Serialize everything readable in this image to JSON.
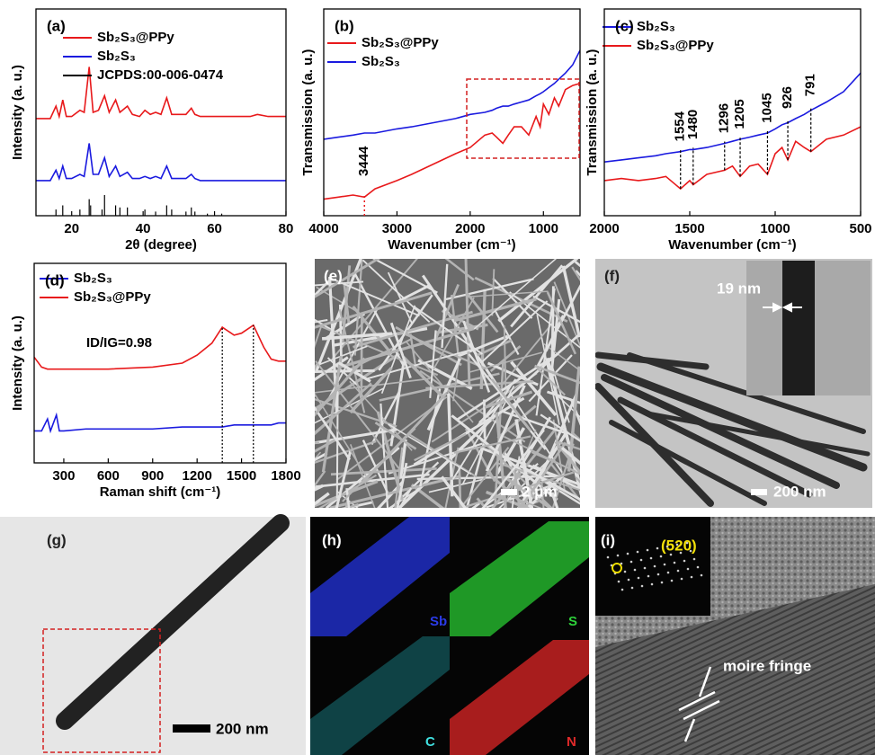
{
  "chart_data": [
    {
      "type": "line",
      "panel": "(a)",
      "x_label": "2θ (degree)",
      "y_label": "Intensity (a. u.)",
      "x": [
        10,
        12,
        14,
        15.6,
        16.5,
        17.5,
        18.5,
        20,
        22.3,
        23.5,
        24.9,
        26,
        27.5,
        29.2,
        30.5,
        32.3,
        33.5,
        35.6,
        37,
        39,
        40.5,
        42,
        43.5,
        45,
        46.6,
        48,
        50,
        52,
        53.5,
        54.5,
        56,
        60,
        65,
        70,
        72,
        75,
        80
      ],
      "xlim": [
        10,
        80
      ],
      "xticks": [
        20,
        40,
        60,
        80
      ],
      "ylim": [
        0,
        100
      ],
      "series": [
        {
          "name": "Sb₂S₃@PPy",
          "color": "#e8191b",
          "values": [
            47,
            47,
            47,
            53,
            48,
            56,
            48,
            48,
            51,
            50,
            72,
            50,
            51,
            58,
            50,
            56,
            50,
            53,
            49,
            48,
            51,
            49,
            50,
            49,
            57,
            49,
            49,
            49,
            52,
            49,
            48,
            48,
            48,
            48,
            49,
            48,
            48
          ]
        },
        {
          "name": "Sb₂S₃",
          "color": "#1a1adf",
          "values": [
            17,
            17,
            17,
            22,
            18,
            24,
            18,
            18,
            20,
            19,
            35,
            20,
            20,
            28,
            19,
            24,
            19,
            21,
            18,
            18,
            19,
            18,
            19,
            18,
            24,
            18,
            18,
            18,
            20,
            18,
            17,
            17,
            17,
            17,
            17,
            17,
            17
          ]
        },
        {
          "name": "JCPDS:00-006-0474",
          "color": "#000000",
          "style": "stick",
          "x": [
            15.6,
            17.5,
            22.3,
            24.9,
            25.3,
            28.5,
            29.2,
            32.3,
            33.5,
            35.6,
            40.5,
            43.5,
            46.6,
            48,
            52,
            53.5,
            54.5,
            58,
            62
          ],
          "values": [
            3,
            5,
            3,
            8,
            5,
            3,
            10,
            5,
            4,
            4,
            3,
            2,
            5,
            3,
            2,
            4,
            2,
            1,
            1
          ]
        }
      ]
    },
    {
      "type": "line",
      "panel": "(b)",
      "x_label": "Wavenumber (cm⁻¹)",
      "y_label": "Transmission (a. u.)",
      "x": [
        4000,
        3800,
        3600,
        3444,
        3300,
        3000,
        2800,
        2500,
        2200,
        2000,
        1800,
        1700,
        1640,
        1554,
        1480,
        1400,
        1300,
        1200,
        1100,
        1045,
        1000,
        926,
        850,
        791,
        700,
        600,
        500
      ],
      "xlim": [
        4000,
        500
      ],
      "xticks": [
        4000,
        3000,
        2000,
        1000
      ],
      "ylim": [
        0,
        100
      ],
      "series": [
        {
          "name": "Sb₂S₃@PPy",
          "color": "#e8191b",
          "values": [
            8,
            9,
            10,
            9,
            13,
            17,
            20,
            25,
            30,
            33,
            39,
            40,
            38,
            35,
            39,
            43,
            43,
            39,
            48,
            43,
            54,
            49,
            57,
            53,
            61,
            63,
            64
          ]
        },
        {
          "name": "Sb₂S₃",
          "color": "#1a1adf",
          "values": [
            37,
            38,
            39,
            40,
            40,
            42,
            43,
            45,
            47,
            49,
            50,
            51,
            52,
            53,
            53,
            54,
            55,
            56,
            58,
            59,
            60,
            62,
            64,
            66,
            69,
            73,
            80
          ]
        }
      ],
      "annotations": [
        3444
      ]
    },
    {
      "type": "line",
      "panel": "(c)",
      "x_label": "Wavenumber (cm⁻¹)",
      "y_label": "Transmission (a. u.)",
      "x": [
        2000,
        1900,
        1800,
        1700,
        1640,
        1554,
        1500,
        1480,
        1400,
        1296,
        1250,
        1205,
        1150,
        1100,
        1045,
        1000,
        960,
        926,
        880,
        830,
        791,
        700,
        600,
        500
      ],
      "xlim": [
        2000,
        500
      ],
      "xticks": [
        2000,
        1500,
        1000,
        500
      ],
      "ylim": [
        0,
        100
      ],
      "series": [
        {
          "name": "Sb₂S₃",
          "color": "#1a1adf",
          "values": [
            26,
            27,
            28,
            29,
            30,
            31,
            32,
            32,
            33,
            35,
            36,
            37,
            38,
            39,
            40,
            42,
            44,
            45,
            47,
            49,
            51,
            55,
            60,
            69
          ]
        },
        {
          "name": "Sb₂S₃@PPy",
          "color": "#e8191b",
          "values": [
            17,
            18,
            17,
            18,
            19,
            13,
            17,
            15,
            20,
            22,
            24,
            19,
            24,
            25,
            20,
            30,
            33,
            27,
            36,
            33,
            31,
            37,
            39,
            43
          ]
        }
      ],
      "annotations": [
        1554,
        1480,
        1296,
        1205,
        1045,
        926,
        791
      ]
    },
    {
      "type": "line",
      "panel": "(d)",
      "x_label": "Raman shift (cm⁻¹)",
      "y_label": "Intensity (a. u.)",
      "x": [
        100,
        150,
        190,
        210,
        250,
        270,
        300,
        450,
        600,
        900,
        1100,
        1200,
        1300,
        1370,
        1450,
        1500,
        1580,
        1650,
        1700,
        1750,
        1800
      ],
      "xlim": [
        100,
        1800
      ],
      "xticks": [
        300,
        600,
        900,
        1200,
        1500,
        1800
      ],
      "ylim": [
        0,
        100
      ],
      "series": [
        {
          "name": "Sb₂S₃",
          "color": "#1a1adf",
          "values": [
            16,
            16,
            22,
            16,
            24,
            16,
            16,
            17,
            17,
            17,
            18,
            18,
            18,
            18,
            19,
            19,
            19,
            19,
            19,
            20,
            20
          ]
        },
        {
          "name": "Sb₂S₃@PPy",
          "color": "#e8191b",
          "values": [
            53,
            48,
            47,
            47,
            47,
            47,
            47,
            47,
            47,
            48,
            50,
            54,
            60,
            68,
            64,
            65,
            69,
            58,
            52,
            51,
            51
          ]
        }
      ],
      "annotation": "ID/IG=0.98"
    }
  ],
  "images": [
    {
      "panel": "(e)",
      "scale_bar": "2 μm"
    },
    {
      "panel": "(f)",
      "inset_label": "19 nm",
      "scale_bar": "200 nm"
    },
    {
      "panel": "(g)",
      "scale_bar": "200 nm"
    },
    {
      "panel": "(h)",
      "maps": [
        "Sb",
        "S",
        "C",
        "N"
      ]
    },
    {
      "panel": "(i)",
      "inset_label": "(520)",
      "annotation": "moire fringe"
    }
  ]
}
